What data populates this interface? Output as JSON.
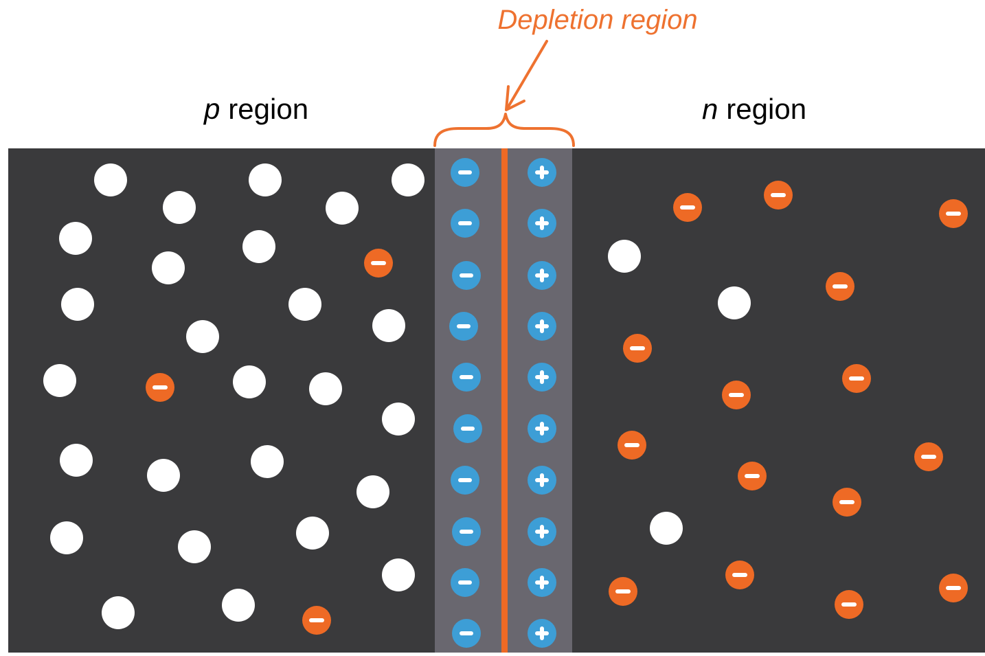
{
  "labels": {
    "depletion_region": "Depletion region",
    "p_region_letter": "p",
    "n_region_letter": "n",
    "region_word": "region"
  },
  "colors": {
    "background": "#ffffff",
    "semiconductor_body": "#3a3a3c",
    "depletion_band": "#69676f",
    "junction_line": "#ee6a25",
    "accent_orange": "#ee7230",
    "hole": "#ffffff",
    "electron": "#ee6a25",
    "negative_ion": "#3d9ed6",
    "positive_ion": "#3d9ed6",
    "sign": "#ffffff",
    "text": "#000000"
  },
  "icons": {
    "hole": "white-circle",
    "electron": "orange-circle-minus",
    "negative_ion": "blue-circle-minus",
    "positive_ion": "blue-circle-plus"
  }
}
